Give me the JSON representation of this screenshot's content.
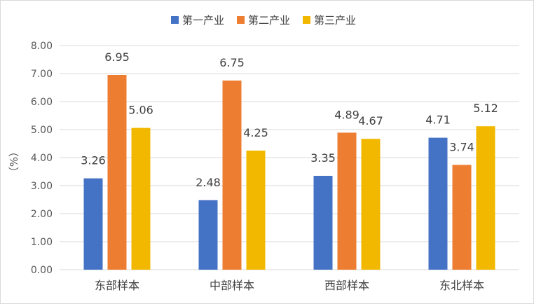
{
  "chart_data": {
    "type": "bar",
    "categories": [
      "东部样本",
      "中部样本",
      "西部样本",
      "东北样本"
    ],
    "series": [
      {
        "name": "第一产业",
        "color": "#4472C4",
        "values": [
          3.26,
          2.48,
          3.35,
          4.71
        ]
      },
      {
        "name": "第二产业",
        "color": "#ED7D31",
        "values": [
          6.95,
          6.75,
          4.89,
          3.74
        ]
      },
      {
        "name": "第三产业",
        "color": "#F2B800",
        "values": [
          5.06,
          4.25,
          4.67,
          5.12
        ]
      }
    ],
    "ylabel": "（%）",
    "ylim": [
      0,
      8
    ],
    "yticks": [
      "0.00",
      "1.00",
      "2.00",
      "3.00",
      "4.00",
      "5.00",
      "6.00",
      "7.00",
      "8.00"
    ],
    "grid": true,
    "legend_position": "top-center",
    "gridline_color": "#d9d9d9"
  }
}
